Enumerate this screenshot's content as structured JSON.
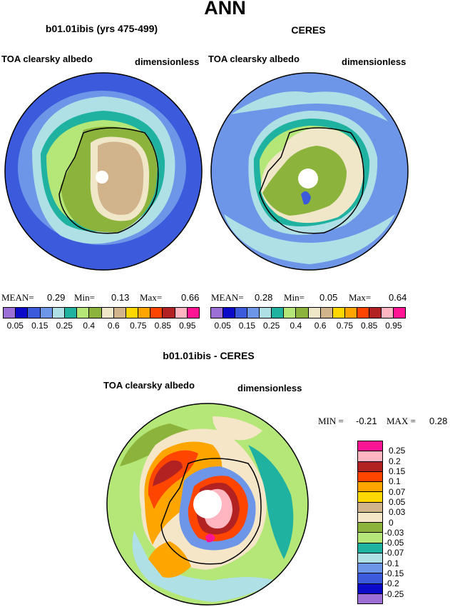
{
  "header": {
    "title": "ANN"
  },
  "left_panel": {
    "title": "b01.01ibis (yrs 475-499)",
    "field": "TOA clearsky albedo",
    "units": "dimensionless",
    "mean_label": "MEAN=",
    "mean_value": "0.29",
    "min_label": "Min=",
    "min_value": "0.13",
    "max_label": "Max=",
    "max_value": "0.66"
  },
  "right_panel": {
    "title": "CERES",
    "field": "TOA clearsky albedo",
    "units": "dimensionless",
    "mean_label": "MEAN=",
    "mean_value": "0.28",
    "min_label": "Min=",
    "min_value": "0.05",
    "max_label": "Max=",
    "max_value": "0.64"
  },
  "top_colorbar": {
    "colors": [
      "#9b6fd6",
      "#0a0ac8",
      "#3c5adc",
      "#6e96e8",
      "#aee0e6",
      "#20b2a0",
      "#b4e678",
      "#8cb43c",
      "#f0e6c8",
      "#d2b48c",
      "#ffd700",
      "#ffa500",
      "#ff4500",
      "#b22222",
      "#ffb6c1",
      "#ff1493"
    ],
    "tick_labels": [
      "0.05",
      "0.15",
      "0.25",
      "0.4",
      "0.6",
      "0.75",
      "0.85",
      "0.95"
    ]
  },
  "diff_panel": {
    "title": "b01.01ibis - CERES",
    "field": "TOA clearsky albedo",
    "units": "dimensionless",
    "min_label": "MIN =",
    "min_value": "-0.21",
    "max_label": "MAX =",
    "max_value": "0.28"
  },
  "diff_colorbar": {
    "colors": [
      "#ff1493",
      "#ffb6c1",
      "#b22222",
      "#ff4500",
      "#ffa500",
      "#ffd700",
      "#d2b48c",
      "#f5e6c8",
      "#8cb43c",
      "#b4e678",
      "#20b2a0",
      "#aee0e6",
      "#6e96e8",
      "#3c5adc",
      "#0a0ac8",
      "#9b6fd6"
    ],
    "tick_labels": [
      "0.25",
      "0.2",
      "0.15",
      "0.1",
      "0.07",
      "0.05",
      "0.03",
      "0",
      "-0.03",
      "-0.05",
      "-0.07",
      "-0.1",
      "-0.15",
      "-0.2",
      "-0.25"
    ]
  }
}
